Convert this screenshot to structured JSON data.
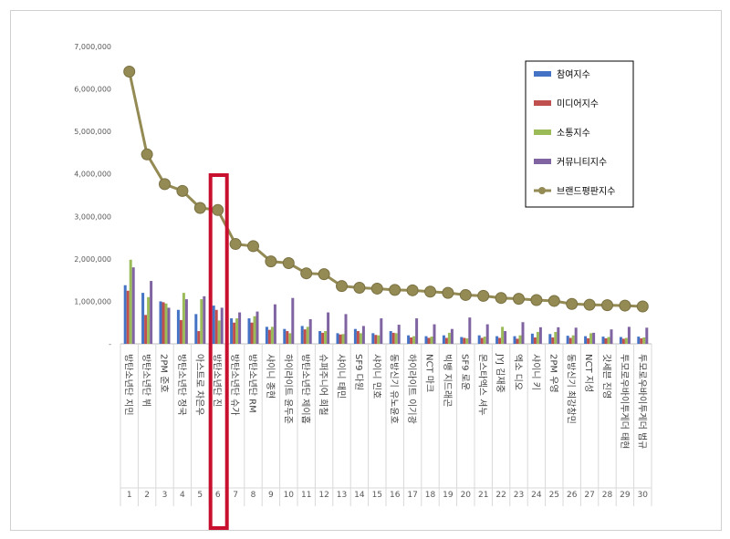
{
  "chart_data": {
    "type": "bar",
    "title": "",
    "xlabel": "",
    "ylabel": "",
    "ylim": [
      0,
      7000000
    ],
    "yticks": [
      "-",
      "1,000,000",
      "2,000,000",
      "3,000,000",
      "4,000,000",
      "5,000,000",
      "6,000,000",
      "7,000,000"
    ],
    "grid": false,
    "legend": "top-right",
    "ranks": [
      "1",
      "2",
      "3",
      "4",
      "5",
      "6",
      "7",
      "8",
      "9",
      "10",
      "11",
      "12",
      "13",
      "14",
      "15",
      "16",
      "17",
      "18",
      "19",
      "20",
      "21",
      "22",
      "23",
      "24",
      "25",
      "26",
      "27",
      "28",
      "29",
      "30"
    ],
    "categories": [
      "방탄소년단 지민",
      "방탄소년단 뷔",
      "2PM 준호",
      "방탄소년단 정국",
      "아스트로 차은우",
      "방탄소년단 진",
      "방탄소년단 슈가",
      "방탄소년단 RM",
      "샤이니 종현",
      "하이라이트 윤두준",
      "방탄소년단 제이홉",
      "슈퍼주니어 희철",
      "샤이니 태민",
      "SF9 다원",
      "샤이니 민호",
      "동방신기 유노윤호",
      "하이라이트 이기광",
      "NCT 마크",
      "빅뱅 지드래곤",
      "SF9 로운",
      "몬스타엑스 셔누",
      "JYJ 김재중",
      "엑소 디오",
      "샤이니 키",
      "2PM 우영",
      "동방신기 최강창민",
      "NCT 지성",
      "갓세븐 진영",
      "투모로우바이투게더 태현",
      "투모로우바이투게더 범규"
    ],
    "series": [
      {
        "name": "참여지수",
        "color": "#4472c4",
        "values": [
          1380000,
          1200000,
          1000000,
          800000,
          700000,
          900000,
          600000,
          600000,
          400000,
          350000,
          420000,
          300000,
          250000,
          350000,
          250000,
          300000,
          200000,
          180000,
          200000,
          160000,
          200000,
          180000,
          180000,
          240000,
          230000,
          190000,
          180000,
          170000,
          160000,
          170000
        ]
      },
      {
        "name": "미디어지수",
        "color": "#c0504d",
        "values": [
          1250000,
          680000,
          980000,
          560000,
          300000,
          800000,
          500000,
          500000,
          330000,
          300000,
          340000,
          260000,
          220000,
          300000,
          210000,
          260000,
          150000,
          140000,
          140000,
          140000,
          140000,
          140000,
          120000,
          150000,
          150000,
          140000,
          130000,
          130000,
          120000,
          130000
        ]
      },
      {
        "name": "소통지수",
        "color": "#9bbb59",
        "values": [
          1980000,
          1100000,
          950000,
          1200000,
          1050000,
          550000,
          600000,
          650000,
          400000,
          250000,
          400000,
          300000,
          230000,
          250000,
          200000,
          250000,
          180000,
          170000,
          260000,
          130000,
          170000,
          400000,
          200000,
          280000,
          280000,
          200000,
          250000,
          160000,
          140000,
          150000
        ]
      },
      {
        "name": "커뮤니티지수",
        "color": "#8064a2",
        "values": [
          1800000,
          1480000,
          850000,
          1050000,
          1120000,
          850000,
          740000,
          760000,
          930000,
          1080000,
          580000,
          740000,
          700000,
          420000,
          600000,
          450000,
          600000,
          460000,
          350000,
          620000,
          460000,
          300000,
          510000,
          390000,
          390000,
          380000,
          260000,
          340000,
          400000,
          380000
        ]
      },
      {
        "name": "브랜드평판지수",
        "color": "#948a54",
        "type": "line",
        "values": [
          6410000,
          4460000,
          3760000,
          3600000,
          3200000,
          3150000,
          2350000,
          2300000,
          1940000,
          1900000,
          1660000,
          1640000,
          1360000,
          1320000,
          1300000,
          1270000,
          1260000,
          1230000,
          1200000,
          1150000,
          1130000,
          1080000,
          1060000,
          1030000,
          1010000,
          940000,
          920000,
          910000,
          900000,
          880000
        ]
      }
    ],
    "highlight_rank": "6"
  }
}
